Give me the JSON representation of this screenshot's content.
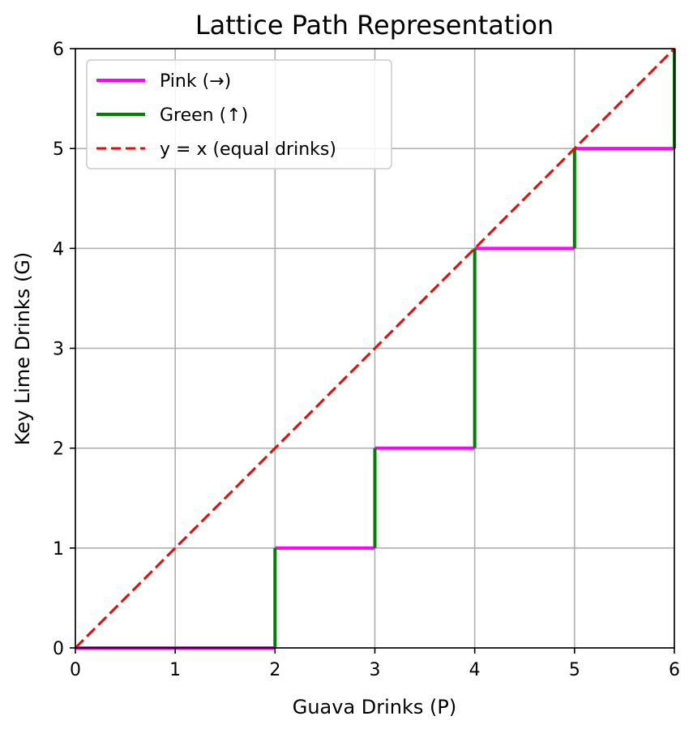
{
  "chart_data": {
    "type": "line",
    "title": "Lattice Path Representation",
    "xlabel": "Guava Drinks (P)",
    "ylabel": "Key Lime Drinks (G)",
    "xlim": [
      0,
      6
    ],
    "ylim": [
      0,
      6
    ],
    "xticks": [
      "0",
      "1",
      "2",
      "3",
      "4",
      "5",
      "6"
    ],
    "yticks": [
      "0",
      "1",
      "2",
      "3",
      "4",
      "5",
      "6"
    ],
    "grid": true,
    "legend_position": "top-left",
    "series": [
      {
        "name": "Pink (→)",
        "color": "#ff00ff",
        "style": "solid",
        "segments": [
          [
            [
              0,
              0
            ],
            [
              2,
              0
            ]
          ],
          [
            [
              2,
              1
            ],
            [
              3,
              1
            ]
          ],
          [
            [
              3,
              2
            ],
            [
              4,
              2
            ]
          ],
          [
            [
              4,
              4
            ],
            [
              5,
              4
            ]
          ],
          [
            [
              5,
              5
            ],
            [
              6,
              5
            ]
          ]
        ]
      },
      {
        "name": "Green (↑)",
        "color": "#008000",
        "style": "solid",
        "segments": [
          [
            [
              2,
              0
            ],
            [
              2,
              1
            ]
          ],
          [
            [
              3,
              1
            ],
            [
              3,
              2
            ]
          ],
          [
            [
              4,
              2
            ],
            [
              4,
              4
            ]
          ],
          [
            [
              5,
              4
            ],
            [
              5,
              5
            ]
          ],
          [
            [
              6,
              5
            ],
            [
              6,
              6
            ]
          ]
        ]
      },
      {
        "name": "y = x (equal drinks)",
        "color": "#ff0000",
        "style": "dashed",
        "segments": [
          [
            [
              0,
              0
            ],
            [
              6,
              6
            ]
          ]
        ]
      }
    ]
  }
}
